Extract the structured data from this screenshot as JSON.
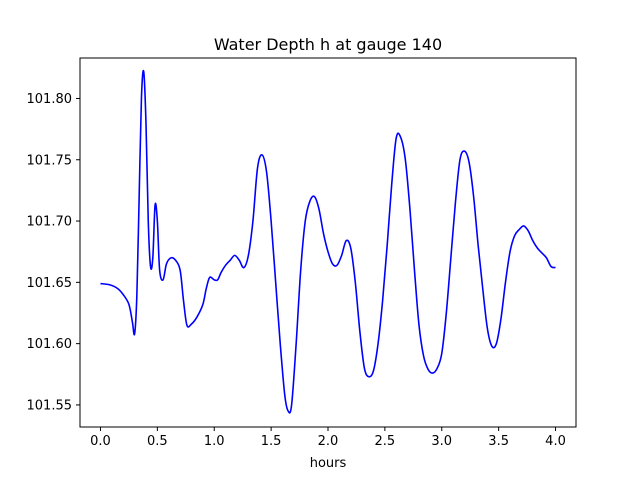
{
  "chart_data": {
    "type": "line",
    "title": "Water Depth h at gauge 140",
    "xlabel": "hours",
    "ylabel": "",
    "xlim": [
      -0.18,
      4.18
    ],
    "ylim": [
      101.532,
      101.833
    ],
    "xticks": [
      0.0,
      0.5,
      1.0,
      1.5,
      2.0,
      2.5,
      3.0,
      3.5,
      4.0
    ],
    "xtick_labels": [
      "0.0",
      "0.5",
      "1.0",
      "1.5",
      "2.0",
      "2.5",
      "3.0",
      "3.5",
      "4.0"
    ],
    "yticks": [
      101.55,
      101.6,
      101.65,
      101.7,
      101.75,
      101.8
    ],
    "ytick_labels": [
      "101.55",
      "101.60",
      "101.65",
      "101.70",
      "101.75",
      "101.80"
    ],
    "grid": false,
    "series": [
      {
        "name": "",
        "color": "#0000ff",
        "x": [
          0.0,
          0.08,
          0.15,
          0.2,
          0.25,
          0.28,
          0.3,
          0.32,
          0.34,
          0.36,
          0.38,
          0.4,
          0.42,
          0.44,
          0.46,
          0.48,
          0.5,
          0.52,
          0.55,
          0.58,
          0.62,
          0.66,
          0.7,
          0.73,
          0.76,
          0.8,
          0.85,
          0.9,
          0.93,
          0.96,
          1.0,
          1.03,
          1.06,
          1.1,
          1.14,
          1.18,
          1.22,
          1.26,
          1.3,
          1.34,
          1.38,
          1.42,
          1.46,
          1.5,
          1.54,
          1.58,
          1.62,
          1.65,
          1.68,
          1.72,
          1.76,
          1.8,
          1.84,
          1.88,
          1.92,
          1.96,
          2.0,
          2.04,
          2.08,
          2.12,
          2.16,
          2.2,
          2.24,
          2.28,
          2.32,
          2.36,
          2.4,
          2.44,
          2.48,
          2.52,
          2.56,
          2.6,
          2.64,
          2.68,
          2.72,
          2.76,
          2.8,
          2.84,
          2.88,
          2.92,
          2.96,
          3.0,
          3.04,
          3.08,
          3.12,
          3.16,
          3.2,
          3.24,
          3.28,
          3.32,
          3.36,
          3.4,
          3.44,
          3.48,
          3.52,
          3.56,
          3.6,
          3.64,
          3.68,
          3.72,
          3.76,
          3.8,
          3.84,
          3.88,
          3.92,
          3.96,
          4.0
        ],
        "values": [
          101.649,
          101.648,
          101.645,
          101.64,
          101.632,
          101.618,
          101.608,
          101.64,
          101.72,
          101.8,
          101.822,
          101.78,
          101.7,
          101.663,
          101.67,
          101.713,
          101.7,
          101.66,
          101.652,
          101.665,
          101.67,
          101.668,
          101.66,
          101.635,
          101.615,
          101.616,
          101.622,
          101.632,
          101.645,
          101.654,
          101.652,
          101.652,
          101.658,
          101.664,
          101.668,
          101.672,
          101.668,
          101.662,
          101.672,
          101.7,
          101.743,
          101.754,
          101.74,
          101.7,
          101.65,
          101.6,
          101.558,
          101.545,
          101.55,
          101.6,
          101.66,
          101.7,
          101.716,
          101.72,
          101.71,
          101.69,
          101.675,
          101.665,
          101.664,
          101.672,
          101.684,
          101.678,
          101.65,
          101.61,
          101.58,
          101.573,
          101.578,
          101.6,
          101.635,
          101.68,
          101.73,
          101.768,
          101.768,
          101.75,
          101.71,
          101.66,
          101.615,
          101.59,
          101.579,
          101.576,
          101.58,
          101.592,
          101.625,
          101.67,
          101.715,
          101.75,
          101.757,
          101.748,
          101.72,
          101.68,
          101.645,
          101.613,
          101.598,
          101.6,
          101.62,
          101.65,
          101.675,
          101.688,
          101.693,
          101.696,
          101.692,
          101.684,
          101.678,
          101.674,
          101.67,
          101.663,
          101.662
        ]
      }
    ]
  }
}
